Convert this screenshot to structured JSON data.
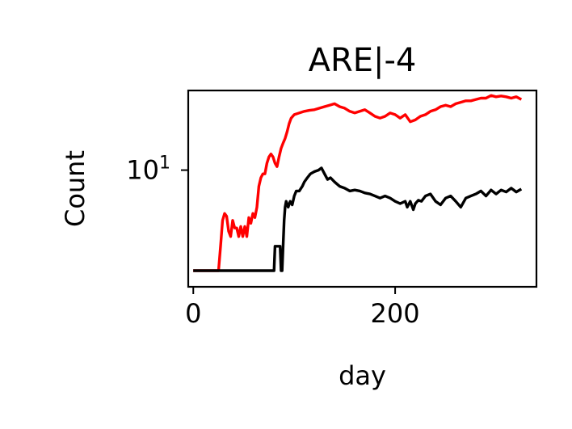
{
  "chart_data": {
    "type": "line",
    "title": "ARE|-4",
    "xlabel": "day",
    "ylabel": "Count",
    "xlim": [
      -5,
      340
    ],
    "ylim": [
      2,
      30
    ],
    "yscale": "log",
    "xticks": [
      {
        "value": 0,
        "label": "0"
      },
      {
        "value": 200,
        "label": "200"
      }
    ],
    "yticks": [
      {
        "value": 10,
        "base": "10",
        "exp": "1"
      }
    ],
    "grid": false,
    "series": [
      {
        "color": "#ff0000",
        "x": [
          0,
          25,
          27,
          29,
          31,
          33,
          35,
          37,
          39,
          41,
          43,
          45,
          47,
          49,
          51,
          53,
          55,
          57,
          59,
          61,
          63,
          65,
          67,
          69,
          71,
          73,
          75,
          77,
          79,
          81,
          83,
          85,
          87,
          89,
          91,
          93,
          95,
          97,
          100,
          105,
          110,
          115,
          120,
          125,
          130,
          135,
          140,
          145,
          150,
          155,
          160,
          165,
          170,
          175,
          180,
          185,
          190,
          195,
          200,
          205,
          210,
          215,
          220,
          225,
          230,
          235,
          240,
          245,
          250,
          255,
          260,
          265,
          270,
          275,
          280,
          285,
          290,
          295,
          300,
          305,
          310,
          315,
          320,
          325
        ],
        "y": [
          2.5,
          2.5,
          3.5,
          5.0,
          5.5,
          5.3,
          4.3,
          4.0,
          5.0,
          4.5,
          4.5,
          4.0,
          4.6,
          4.0,
          4.6,
          4.0,
          5.2,
          4.8,
          5.5,
          5.2,
          6.0,
          8.0,
          9.0,
          9.5,
          9.5,
          11.0,
          12.0,
          12.5,
          12.0,
          11.0,
          10.5,
          12.0,
          13.5,
          14.5,
          15.5,
          17.0,
          19.0,
          20.5,
          21.5,
          22.0,
          22.5,
          22.8,
          23.0,
          23.5,
          24.0,
          24.5,
          25.0,
          24.0,
          23.5,
          22.5,
          22.0,
          22.5,
          23.0,
          22.0,
          21.0,
          20.5,
          21.0,
          22.0,
          21.5,
          20.5,
          21.5,
          19.5,
          20.0,
          21.0,
          21.5,
          22.5,
          23.0,
          24.0,
          24.5,
          24.0,
          25.0,
          25.5,
          26.0,
          26.0,
          26.5,
          27.0,
          27.0,
          28.0,
          27.5,
          27.8,
          27.5,
          27.0,
          27.5,
          26.5
        ]
      },
      {
        "color": "#000000",
        "x": [
          0,
          79,
          80,
          81,
          83,
          85,
          86,
          87,
          88,
          89,
          90,
          91,
          92,
          94,
          96,
          98,
          100,
          102,
          105,
          108,
          110,
          113,
          116,
          120,
          124,
          127,
          130,
          133,
          136,
          140,
          145,
          150,
          155,
          160,
          165,
          170,
          175,
          180,
          185,
          190,
          195,
          200,
          205,
          210,
          212,
          215,
          218,
          220,
          223,
          226,
          230,
          235,
          240,
          245,
          250,
          255,
          260,
          265,
          270,
          275,
          280,
          285,
          290,
          295,
          300,
          305,
          310,
          315,
          320,
          325
        ],
        "y": [
          2.5,
          2.5,
          2.5,
          3.5,
          3.5,
          3.5,
          3.5,
          2.5,
          2.5,
          3.5,
          5.0,
          6.0,
          6.5,
          6.0,
          6.5,
          6.2,
          7.0,
          7.5,
          7.5,
          8.0,
          8.5,
          9.0,
          9.5,
          9.8,
          10.0,
          10.3,
          9.5,
          8.8,
          9.0,
          8.5,
          8.0,
          7.8,
          7.5,
          7.6,
          7.5,
          7.3,
          7.2,
          7.0,
          6.8,
          7.0,
          6.8,
          6.5,
          6.3,
          6.5,
          6.0,
          6.5,
          5.8,
          6.3,
          6.6,
          6.5,
          7.0,
          7.2,
          6.5,
          6.2,
          6.8,
          7.0,
          6.5,
          6.0,
          6.8,
          7.0,
          7.2,
          7.5,
          7.0,
          7.6,
          7.2,
          7.6,
          7.4,
          7.8,
          7.4,
          7.7
        ]
      }
    ]
  }
}
